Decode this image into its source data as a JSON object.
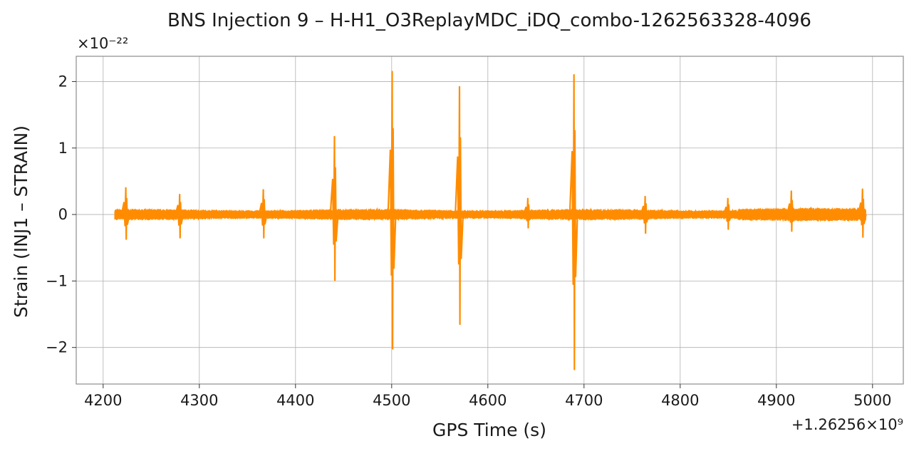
{
  "chart_data": {
    "type": "line",
    "title": "BNS Injection 9 – H-H1_O3ReplayMDC_iDQ_combo-1262563328-4096",
    "xlabel": "GPS Time (s)",
    "ylabel": "Strain (INJ1 – STRAIN)",
    "x_offset_text": "+1.26256×10⁹",
    "y_scale_text": "×10⁻²²",
    "xlim": [
      4172,
      5032
    ],
    "ylim": [
      -2.55,
      2.38
    ],
    "x_ticks": [
      4200,
      4300,
      4400,
      4500,
      4600,
      4700,
      4800,
      4900,
      5000
    ],
    "x_tick_labels": [
      "4200",
      "4300",
      "4400",
      "4500",
      "4600",
      "4700",
      "4800",
      "4900",
      "5000"
    ],
    "y_ticks": [
      -2,
      -1,
      0,
      1,
      2
    ],
    "y_tick_labels": [
      "−2",
      "−1",
      "0",
      "1",
      "2"
    ],
    "grid": true,
    "color": "#ff8c00",
    "x_range": [
      4212,
      4993
    ],
    "baseline_amplitude": 0.07,
    "spikes": [
      {
        "x": 4224,
        "ymax": 0.4,
        "ymin": -0.37
      },
      {
        "x": 4280,
        "ymax": 0.3,
        "ymin": -0.35
      },
      {
        "x": 4367,
        "ymax": 0.37,
        "ymin": -0.35
      },
      {
        "x": 4441,
        "ymax": 1.17,
        "ymin": -0.99
      },
      {
        "x": 4501,
        "ymax": 2.15,
        "ymin": -2.02
      },
      {
        "x": 4571,
        "ymax": 1.92,
        "ymin": -1.65
      },
      {
        "x": 4642,
        "ymax": 0.24,
        "ymin": -0.2
      },
      {
        "x": 4690,
        "ymax": 2.1,
        "ymin": -2.33
      },
      {
        "x": 4764,
        "ymax": 0.27,
        "ymin": -0.28
      },
      {
        "x": 4850,
        "ymax": 0.24,
        "ymin": -0.22
      },
      {
        "x": 4916,
        "ymax": 0.35,
        "ymin": -0.25
      },
      {
        "x": 4990,
        "ymax": 0.38,
        "ymin": -0.34
      }
    ]
  }
}
